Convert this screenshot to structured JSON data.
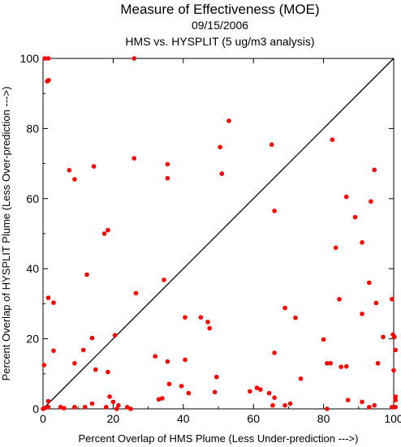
{
  "chart_data": {
    "type": "scatter",
    "title": "Measure of Effectiveness (MOE)",
    "subtitle": "09/15/2006",
    "subtitle2": "HMS vs. HYSPLIT  (5 ug/m3 analysis)",
    "xlabel": "Percent Overlap of HMS Plume (Less Under-prediction --->)",
    "ylabel": "Percent Overlap of HYSPLIT Plume (Less Over-prediction --->)",
    "xlim": [
      0,
      100
    ],
    "ylim": [
      0,
      100
    ],
    "xticks": [
      0,
      20,
      40,
      60,
      80,
      100
    ],
    "yticks": [
      0,
      20,
      40,
      60,
      80,
      100
    ],
    "x_tick_labels": [
      "0",
      "20",
      "40",
      "60",
      "80",
      "100"
    ],
    "y_tick_labels": [
      "0",
      "20",
      "40",
      "60",
      "80",
      "100"
    ],
    "reference_line": {
      "from": [
        0,
        0
      ],
      "to": [
        100,
        100
      ]
    },
    "point_color": "#ff0000",
    "points": [
      [
        0.5,
        100
      ],
      [
        1.5,
        100
      ],
      [
        1.2,
        93.5
      ],
      [
        1.6,
        93.8
      ],
      [
        26,
        100
      ],
      [
        53,
        82.2
      ],
      [
        82.5,
        76.8
      ],
      [
        65.2,
        75.4
      ],
      [
        50.5,
        74.7
      ],
      [
        26,
        71.5
      ],
      [
        35.5,
        69.8
      ],
      [
        14.5,
        69.2
      ],
      [
        7.5,
        68.1
      ],
      [
        94.5,
        68.2
      ],
      [
        51,
        67.1
      ],
      [
        9,
        65.5
      ],
      [
        35.5,
        65.8
      ],
      [
        86.5,
        60.5
      ],
      [
        93.5,
        59.2
      ],
      [
        66,
        56.5
      ],
      [
        89,
        54.7
      ],
      [
        18.5,
        51
      ],
      [
        17.5,
        50
      ],
      [
        91,
        47.5
      ],
      [
        83.5,
        46
      ],
      [
        12.5,
        38.3
      ],
      [
        34.5,
        36.8
      ],
      [
        93,
        36
      ],
      [
        26.5,
        33
      ],
      [
        1.5,
        31.7
      ],
      [
        3,
        30.3
      ],
      [
        84.5,
        31.3
      ],
      [
        95,
        30.2
      ],
      [
        99.5,
        31.3
      ],
      [
        69,
        28.8
      ],
      [
        91,
        27.1
      ],
      [
        40.5,
        26.1
      ],
      [
        45,
        26.1
      ],
      [
        72,
        26
      ],
      [
        47,
        24.8
      ],
      [
        47.5,
        23
      ],
      [
        20.5,
        21
      ],
      [
        14,
        20.2
      ],
      [
        80,
        19.8
      ],
      [
        97,
        20.5
      ],
      [
        99.8,
        21.2
      ],
      [
        100.2,
        20.5
      ],
      [
        11.5,
        16.8
      ],
      [
        3,
        16.6
      ],
      [
        66,
        16
      ],
      [
        100.5,
        16.8
      ],
      [
        32,
        15
      ],
      [
        40.5,
        14
      ],
      [
        35.5,
        13.5
      ],
      [
        9,
        13
      ],
      [
        0.3,
        12.5
      ],
      [
        81,
        13
      ],
      [
        82,
        13
      ],
      [
        85,
        12
      ],
      [
        86.5,
        12.1
      ],
      [
        95.5,
        13
      ],
      [
        15,
        11.2
      ],
      [
        18.5,
        10.5
      ],
      [
        36,
        7.1
      ],
      [
        39.5,
        6.5
      ],
      [
        61,
        6
      ],
      [
        62,
        5.5
      ],
      [
        100,
        11
      ],
      [
        73.5,
        8.6
      ],
      [
        49.5,
        9.1
      ],
      [
        41.5,
        4.5
      ],
      [
        49,
        4.8
      ],
      [
        59,
        5
      ],
      [
        64.5,
        4.5
      ],
      [
        34,
        3
      ],
      [
        19,
        3.5
      ],
      [
        33,
        2.7
      ],
      [
        100.5,
        3.5
      ],
      [
        66,
        3.2
      ],
      [
        100.5,
        2.5
      ],
      [
        87,
        2.5
      ],
      [
        91,
        2
      ],
      [
        69,
        1
      ],
      [
        70.5,
        1.5
      ],
      [
        94.5,
        1
      ],
      [
        20,
        2
      ],
      [
        14,
        1.5
      ],
      [
        12,
        0.5
      ],
      [
        21.5,
        1
      ],
      [
        1.5,
        2.2
      ],
      [
        0,
        0
      ],
      [
        1.5,
        0.5
      ],
      [
        5,
        0.5
      ],
      [
        9,
        0.5
      ],
      [
        18,
        0.5
      ],
      [
        21,
        0
      ],
      [
        24,
        0.5
      ],
      [
        25,
        0
      ],
      [
        65.5,
        1
      ],
      [
        81,
        0
      ],
      [
        93,
        0.5
      ],
      [
        0.5,
        0.2
      ],
      [
        6,
        0.2
      ],
      [
        99.5,
        0.5
      ],
      [
        100.5,
        0.5
      ]
    ]
  }
}
